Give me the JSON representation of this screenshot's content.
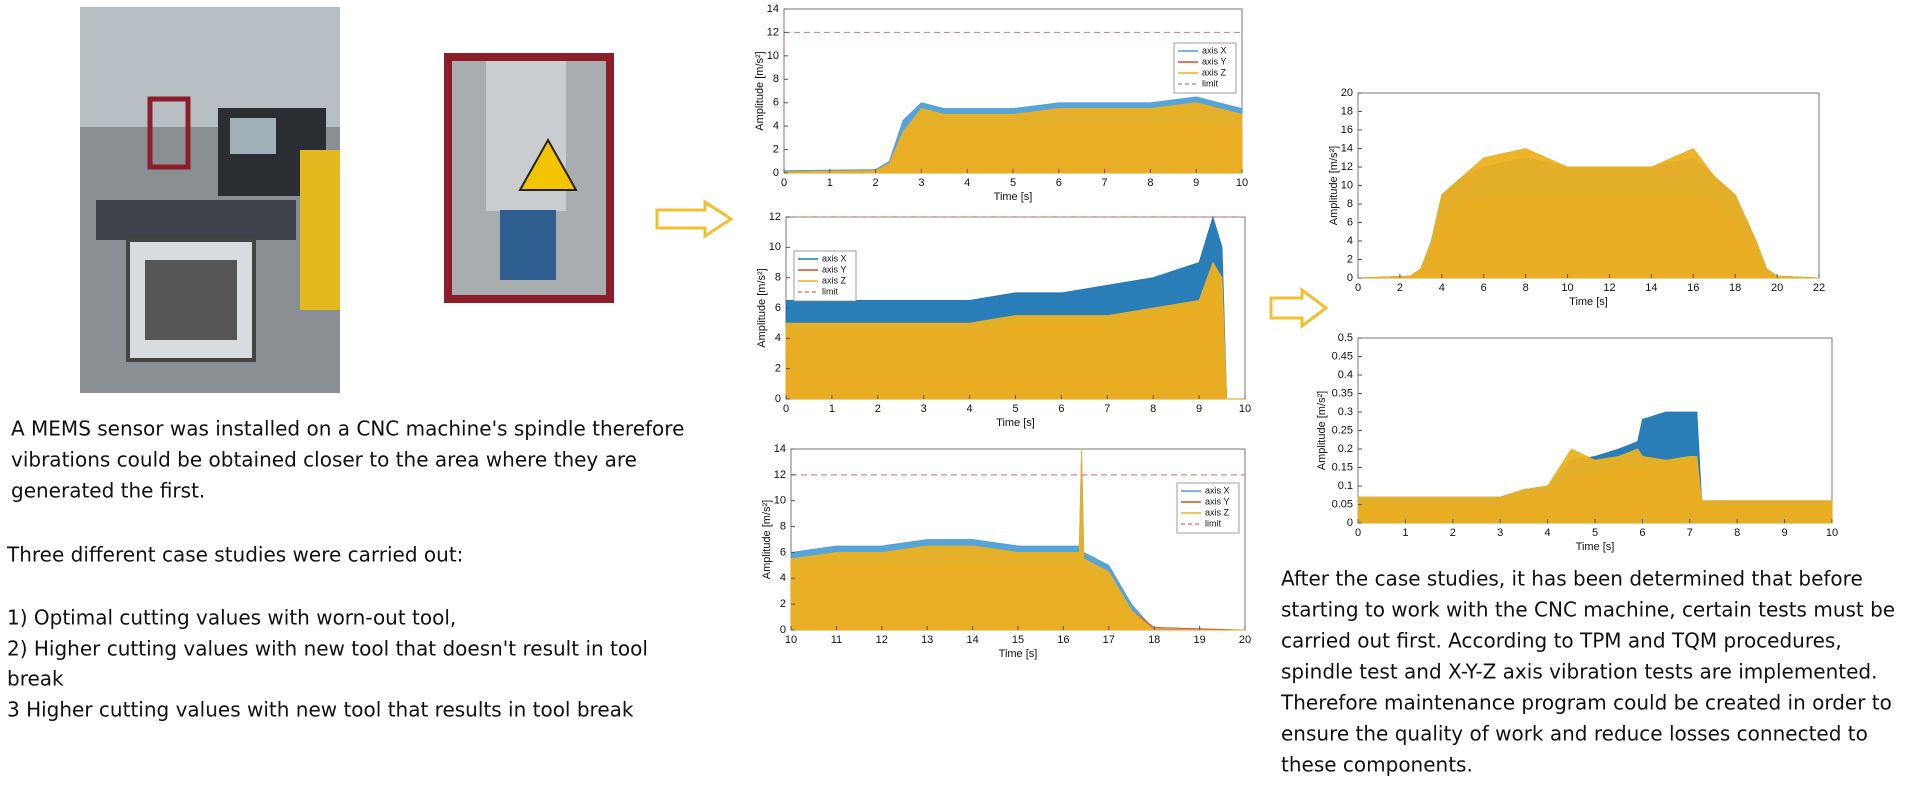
{
  "left_text": {
    "paragraph1": [
      "A MEMS sensor was installed on a CNC machine's spindle therefore",
      "vibrations could be obtained closer to the area where they are",
      "generated the first."
    ],
    "paragraph2": "Three different case studies were carried out:",
    "cases": [
      "1) Optimal cutting values with worn-out tool,",
      "2) Higher cutting values with new tool that doesn't result in tool",
      "break",
      "3 Higher cutting values with new tool that results in tool break"
    ]
  },
  "right_text": [
    "After the case studies, it has been determined that before",
    "starting to work with the CNC machine, certain tests must be",
    "carried out first. According to TPM and TQM procedures,",
    "spindle test and X-Y-Z axis vibration tests are implemented.",
    "Therefore maintenance program could be created in order to",
    "ensure the quality of work and reduce losses connected to",
    "these components."
  ],
  "charts": [
    {
      "type": "area",
      "xlabel": "Time [s]",
      "ylabel": "Amplitude [m/s²]",
      "xlim": [
        0,
        10
      ],
      "xticks": [
        0,
        1,
        2,
        3,
        4,
        5,
        6,
        7,
        8,
        9,
        10
      ],
      "ylim": [
        0,
        14
      ],
      "yticks": [
        0,
        2,
        4,
        6,
        8,
        10,
        12,
        14
      ],
      "legend": "upper right",
      "limit": {
        "name": "limit",
        "value": 12,
        "color": "#d48a8a"
      },
      "x": [
        0,
        2,
        2.3,
        2.6,
        3,
        3.5,
        4,
        5,
        6,
        7,
        8,
        9,
        9.5,
        10
      ],
      "series": [
        {
          "name": "axis X",
          "color": "#4d9fd6",
          "values": [
            0.2,
            0.3,
            1,
            4.5,
            6,
            5.5,
            5.5,
            5.5,
            6,
            6,
            6,
            6.5,
            6,
            5.5
          ]
        },
        {
          "name": "axis Y",
          "color": "#c8501e",
          "values": [
            0.1,
            0.2,
            0.8,
            3,
            4,
            3.8,
            3.8,
            3.8,
            4,
            4,
            4,
            4.2,
            4,
            3.8
          ]
        },
        {
          "name": "axis Z",
          "color": "#edb120",
          "values": [
            0.1,
            0.2,
            0.8,
            3.5,
            5.5,
            5,
            5,
            5,
            5.5,
            5.5,
            5.5,
            6,
            5.5,
            5
          ]
        }
      ]
    },
    {
      "type": "area",
      "xlabel": "Time [s]",
      "ylabel": "Amplitude [m/s²]",
      "xlim": [
        0,
        10
      ],
      "xticks": [
        0,
        1,
        2,
        3,
        4,
        5,
        6,
        7,
        8,
        9,
        10
      ],
      "ylim": [
        0,
        12
      ],
      "yticks": [
        0,
        2,
        4,
        6,
        8,
        10,
        12
      ],
      "legend": "upper left",
      "limit": {
        "name": "limit",
        "value": 12,
        "color": "#d48a8a"
      },
      "x": [
        0,
        1,
        2,
        3,
        4,
        5,
        6,
        7,
        8,
        9,
        9.3,
        9.5,
        9.6,
        10
      ],
      "series": [
        {
          "name": "axis X",
          "color": "#1f77b4",
          "values": [
            6.5,
            6.5,
            6.5,
            6.5,
            6.5,
            7,
            7,
            7.5,
            8,
            9,
            12,
            10,
            0,
            0
          ]
        },
        {
          "name": "axis Y",
          "color": "#c8501e",
          "values": [
            4.5,
            4.5,
            4.5,
            4.5,
            4.5,
            5,
            5,
            5,
            5.5,
            6,
            8,
            7,
            0,
            0
          ]
        },
        {
          "name": "axis Z",
          "color": "#edb120",
          "values": [
            5,
            5,
            5,
            5,
            5,
            5.5,
            5.5,
            5.5,
            6,
            6.5,
            9,
            8,
            0,
            0
          ]
        }
      ]
    },
    {
      "type": "area",
      "xlabel": "Time [s]",
      "ylabel": "Amplitude [m/s²]",
      "xlim": [
        10,
        20
      ],
      "xticks": [
        10,
        11,
        12,
        13,
        14,
        15,
        16,
        17,
        18,
        19,
        20
      ],
      "ylim": [
        0,
        14
      ],
      "yticks": [
        0,
        2,
        4,
        6,
        8,
        10,
        12,
        14
      ],
      "legend": "upper right",
      "limit": {
        "name": "limit",
        "value": 12,
        "color": "#d48a8a"
      },
      "x": [
        10,
        11,
        12,
        13,
        14,
        15,
        16,
        16.35,
        16.4,
        16.45,
        17,
        17.5,
        18,
        20
      ],
      "series": [
        {
          "name": "axis X",
          "color": "#4d9fd6",
          "values": [
            6,
            6.5,
            6.5,
            7,
            7,
            6.5,
            6.5,
            6.5,
            14,
            6,
            5,
            2,
            0,
            0
          ]
        },
        {
          "name": "axis Y",
          "color": "#c8501e",
          "values": [
            4.5,
            5,
            5,
            5,
            5,
            5,
            5,
            5,
            12,
            4.5,
            3.5,
            1.5,
            0.2,
            0
          ]
        },
        {
          "name": "axis Z",
          "color": "#edb120",
          "values": [
            5.5,
            6,
            6,
            6.5,
            6.5,
            6,
            6,
            6,
            14,
            5.5,
            4.5,
            1.5,
            0,
            0
          ]
        }
      ]
    },
    {
      "type": "area",
      "xlabel": "Time [s]",
      "ylabel": "Amplitude [m/s²]",
      "xlim": [
        0,
        22
      ],
      "xticks": [
        0,
        2,
        4,
        6,
        8,
        10,
        12,
        14,
        16,
        18,
        20,
        22
      ],
      "ylim": [
        0,
        20
      ],
      "yticks": [
        0,
        2,
        4,
        6,
        8,
        10,
        12,
        14,
        16,
        18,
        20
      ],
      "x": [
        0,
        2.5,
        3,
        3.5,
        4,
        5,
        6,
        8,
        10,
        12,
        14,
        16,
        17,
        18,
        19,
        19.5,
        20,
        22
      ],
      "series": [
        {
          "name": "axis X",
          "color": "#1f77b4",
          "values": [
            0,
            0.2,
            1,
            4,
            9,
            11,
            12,
            13,
            12,
            12,
            12,
            13,
            11,
            9,
            4,
            1,
            0.2,
            0
          ]
        },
        {
          "name": "axis Y",
          "color": "#c8501e",
          "values": [
            0,
            0.2,
            0.8,
            3,
            6,
            8,
            8.5,
            8.5,
            8.5,
            8.5,
            8.5,
            8.5,
            8,
            6,
            3,
            0.8,
            0.2,
            0
          ]
        },
        {
          "name": "axis Z",
          "color": "#edb120",
          "values": [
            0,
            0.2,
            1,
            4,
            9,
            11,
            13,
            14,
            12,
            12,
            12,
            14,
            11,
            9,
            4,
            1,
            0.2,
            0
          ]
        }
      ]
    },
    {
      "type": "area",
      "xlabel": "Time [s]",
      "ylabel": "Amplitude [m/s²]",
      "xlim": [
        0,
        10
      ],
      "xticks": [
        0,
        1,
        2,
        3,
        4,
        5,
        6,
        7,
        8,
        9,
        10
      ],
      "ylim": [
        0,
        0.5
      ],
      "yticks": [
        0,
        0.05,
        0.1,
        0.15,
        0.2,
        0.25,
        0.3,
        0.35,
        0.4,
        0.45,
        0.5
      ],
      "x": [
        0,
        1,
        2,
        3,
        3.5,
        4,
        4.5,
        5,
        5.5,
        5.9,
        6,
        6.5,
        7,
        7.15,
        7.25,
        8,
        9,
        10
      ],
      "series": [
        {
          "name": "axis X",
          "color": "#1f77b4",
          "values": [
            0.07,
            0.07,
            0.07,
            0.07,
            0.09,
            0.1,
            0.17,
            0.18,
            0.2,
            0.22,
            0.28,
            0.3,
            0.3,
            0.3,
            0.06,
            0.06,
            0.06,
            0.06
          ]
        },
        {
          "name": "axis Y",
          "color": "#c8501e",
          "values": [
            0.05,
            0.05,
            0.05,
            0.05,
            0.07,
            0.08,
            0.12,
            0.13,
            0.14,
            0.15,
            0.15,
            0.16,
            0.16,
            0.16,
            0.04,
            0.04,
            0.04,
            0.04
          ]
        },
        {
          "name": "axis Z",
          "color": "#edb120",
          "values": [
            0.07,
            0.07,
            0.07,
            0.07,
            0.09,
            0.1,
            0.2,
            0.17,
            0.18,
            0.2,
            0.18,
            0.17,
            0.18,
            0.18,
            0.06,
            0.06,
            0.06,
            0.06
          ]
        }
      ]
    }
  ]
}
